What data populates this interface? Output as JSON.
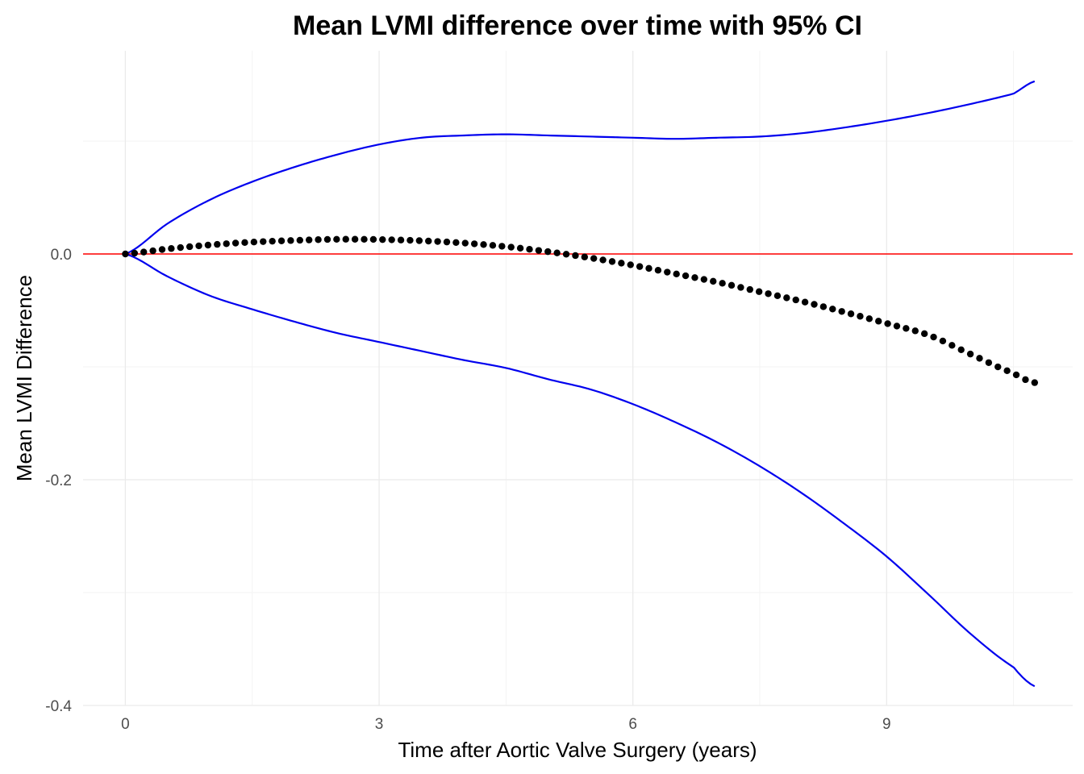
{
  "chart_data": {
    "type": "line",
    "title": "Mean LVMI difference over time with 95% CI",
    "xlabel": "Time after Aortic Valve Surgery (years)",
    "ylabel": "Mean LVMI Difference",
    "xlim": [
      -0.5,
      11.2
    ],
    "ylim": [
      -0.4,
      0.18
    ],
    "x_ticks": [
      "0",
      "3",
      "6",
      "9"
    ],
    "x_tick_values": [
      0,
      3,
      6,
      9
    ],
    "y_ticks": [
      "0.0",
      "-0.2",
      "-0.4"
    ],
    "y_tick_values": [
      0.0,
      -0.2,
      -0.4
    ],
    "grid": true,
    "legend": "none",
    "reference_line": {
      "y": 0,
      "color": "#ff0000"
    },
    "colors": {
      "mean": "#000000",
      "ci": "#0000ee",
      "reference": "#ff0000"
    },
    "series": [
      {
        "role": "mean",
        "style": "points",
        "x_start": 0,
        "x_end": 10.75,
        "n_points": 100,
        "x": [
          0,
          0.5,
          1,
          1.5,
          2,
          2.5,
          3,
          3.5,
          4,
          4.5,
          5,
          5.5,
          6,
          6.5,
          7,
          7.5,
          8,
          8.5,
          9,
          9.5,
          10,
          10.5,
          10.75
        ],
        "values": [
          0,
          0.0045,
          0.008,
          0.0105,
          0.012,
          0.013,
          0.0128,
          0.0117,
          0.0097,
          0.0065,
          0.002,
          -0.0035,
          -0.01,
          -0.0175,
          -0.025,
          -0.0335,
          -0.042,
          -0.0515,
          -0.0615,
          -0.072,
          -0.089,
          -0.1055,
          -0.114
        ]
      },
      {
        "role": "upper_ci",
        "style": "line",
        "x": [
          0,
          0.5,
          1,
          1.5,
          2,
          2.5,
          3,
          3.5,
          4,
          4.5,
          5,
          5.5,
          6,
          6.5,
          7,
          7.5,
          8,
          8.5,
          9,
          9.5,
          10,
          10.5,
          10.75
        ],
        "values": [
          0,
          0.027,
          0.048,
          0.064,
          0.077,
          0.088,
          0.097,
          0.103,
          0.105,
          0.106,
          0.105,
          0.104,
          0.103,
          0.102,
          0.103,
          0.104,
          0.107,
          0.112,
          0.118,
          0.125,
          0.133,
          0.142,
          0.153
        ]
      },
      {
        "role": "lower_ci",
        "style": "line",
        "x": [
          0,
          0.5,
          1,
          1.5,
          2,
          2.5,
          3,
          3.5,
          4,
          4.5,
          5,
          5.5,
          6,
          6.5,
          7,
          7.5,
          8,
          8.5,
          9,
          9.5,
          10,
          10.5,
          10.75
        ],
        "values": [
          0,
          -0.02,
          -0.037,
          -0.049,
          -0.06,
          -0.07,
          -0.078,
          -0.086,
          -0.094,
          -0.101,
          -0.111,
          -0.12,
          -0.133,
          -0.149,
          -0.167,
          -0.188,
          -0.212,
          -0.239,
          -0.268,
          -0.302,
          -0.337,
          -0.366,
          -0.383
        ]
      }
    ]
  }
}
